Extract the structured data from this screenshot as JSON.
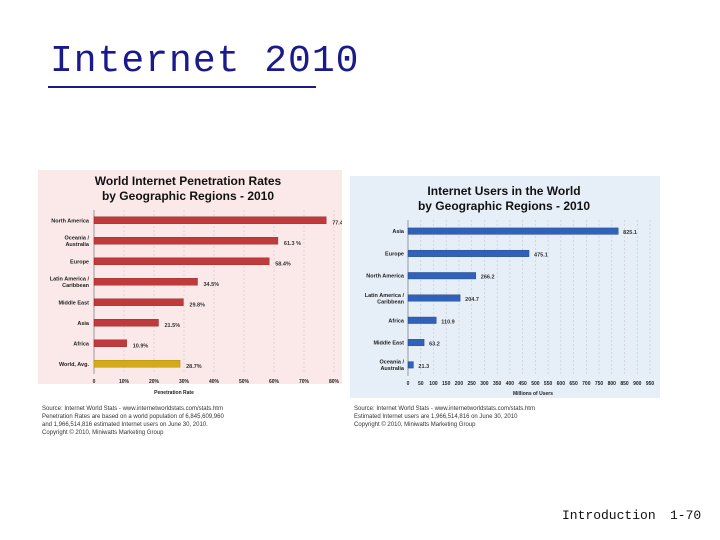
{
  "slide": {
    "title": "Internet 2010",
    "footer_section": "Introduction",
    "footer_page": "1-70"
  },
  "chart_data": [
    {
      "type": "bar",
      "orientation": "horizontal",
      "title": "World Internet Penetration Rates",
      "subtitle": "by Geographic Regions - 2010",
      "xlabel": "Penetration Rate",
      "categories": [
        "North America",
        "Oceania / Australia",
        "Europe",
        "Latin America / Caribbean",
        "Middle East",
        "Asia",
        "Africa",
        "World, Avg."
      ],
      "values": [
        77.4,
        61.3,
        58.4,
        34.5,
        29.8,
        21.5,
        10.9,
        28.7
      ],
      "value_labels": [
        "77.4%",
        "61.3 %",
        "58.4%",
        "34.5%",
        "29.8%",
        "21.5%",
        "10.9%",
        "28.7%"
      ],
      "xlim": [
        0,
        80
      ],
      "ticks": [
        "0",
        "10%",
        "20%",
        "30%",
        "40%",
        "50%",
        "60%",
        "70%",
        "80%"
      ],
      "grid": true,
      "colors": {
        "bar": "#c0393b",
        "highlight": "#d4aa1a",
        "background": "#fbe9ea"
      },
      "source": [
        "Source: Internet World Stats - www.internetworldstats.com/stats.htm",
        "Penetration Rates are based on a world population of 6,845,609,960",
        "and 1,966,514,816 estimated Internet users on June 30, 2010.",
        "Copyright © 2010, Miniwatts Marketing Group"
      ]
    },
    {
      "type": "bar",
      "orientation": "horizontal",
      "title": "Internet Users in the World",
      "subtitle": "by Geographic Regions - 2010",
      "xlabel": "Millions of Users",
      "categories": [
        "Asia",
        "Europe",
        "North America",
        "Latin America / Caribbean",
        "Africa",
        "Middle East",
        "Oceania / Australia"
      ],
      "values": [
        825.1,
        475.1,
        266.2,
        204.7,
        110.9,
        63.2,
        21.3
      ],
      "value_labels": [
        "825.1",
        "475.1",
        "266.2",
        "204.7",
        "110.9",
        "63.2",
        "21.3"
      ],
      "xlim": [
        0,
        950
      ],
      "ticks": [
        "0",
        "50",
        "100",
        "150",
        "200",
        "250",
        "300",
        "350",
        "400",
        "450",
        "500",
        "550",
        "600",
        "650",
        "700",
        "750",
        "800",
        "850",
        "900",
        "950"
      ],
      "grid": true,
      "colors": {
        "bar": "#2f62b8",
        "background": "#e6eef8"
      },
      "source": [
        "Source: Internet World Stats - www.internetworldstats.com/stats.htm",
        "Estimated Internet users are 1,966,514,816 on June 30, 2010",
        "Copyright © 2010, Miniwatts Marketing Group"
      ]
    }
  ]
}
